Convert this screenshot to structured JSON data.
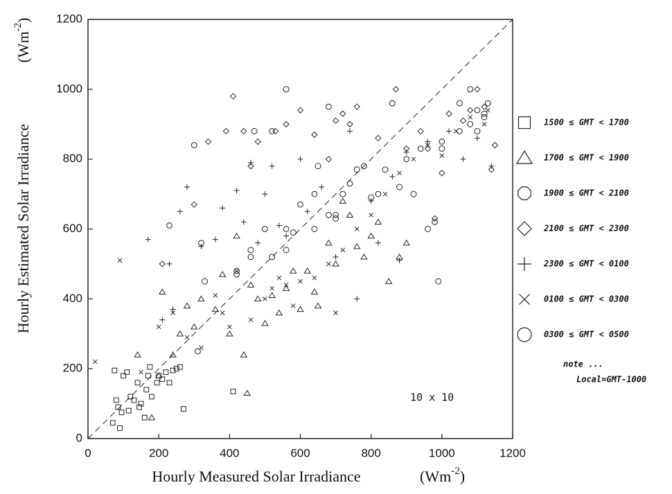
{
  "chart_data": {
    "type": "scatter",
    "x_label": "Hourly Measured Solar Irradiance",
    "x_unit": [
      "(Wm",
      "-2",
      ")"
    ],
    "y_label": "Hourly Estimated Solar Irradiance",
    "y_unit": [
      "(Wm",
      "-2",
      ")"
    ],
    "annotation": "10 x 10",
    "note": [
      "note ...",
      "Local=GMT-1000"
    ],
    "xlim": [
      0,
      1200
    ],
    "ylim": [
      0,
      1200
    ],
    "xticks": [
      0,
      200,
      400,
      600,
      800,
      1000,
      1200
    ],
    "yticks": [
      0,
      200,
      400,
      600,
      800,
      1000,
      1200
    ],
    "reference_line": true,
    "legend": "right",
    "series": [
      {
        "name": "1500 ≤ GMT < 1700",
        "marker": "square",
        "color": "#222",
        "x": [
          70,
          75,
          80,
          85,
          90,
          95,
          100,
          110,
          115,
          120,
          130,
          140,
          145,
          150,
          160,
          165,
          170,
          175,
          180,
          195,
          200,
          210,
          220,
          230,
          240,
          250,
          260,
          270,
          410
        ],
        "y": [
          45,
          195,
          110,
          90,
          30,
          75,
          180,
          190,
          80,
          120,
          110,
          160,
          90,
          100,
          60,
          140,
          180,
          205,
          120,
          160,
          180,
          170,
          190,
          160,
          195,
          200,
          205,
          85,
          135
        ]
      },
      {
        "name": "1700 ≤ GMT < 1900",
        "marker": "triangle",
        "color": "#222",
        "x": [
          140,
          180,
          200,
          210,
          240,
          260,
          280,
          300,
          320,
          360,
          380,
          400,
          420,
          440,
          450,
          460,
          480,
          500,
          520,
          540,
          560,
          580,
          600,
          620,
          640,
          650,
          680,
          700,
          720,
          740,
          760,
          780,
          800,
          820,
          850,
          880,
          900
        ],
        "y": [
          240,
          60,
          180,
          420,
          240,
          300,
          380,
          320,
          400,
          370,
          470,
          300,
          580,
          240,
          130,
          440,
          400,
          330,
          410,
          360,
          430,
          480,
          370,
          480,
          420,
          380,
          560,
          500,
          680,
          640,
          550,
          520,
          580,
          620,
          450,
          520,
          560
        ]
      },
      {
        "name": "1900 ≤ GMT < 2100",
        "marker": "octagon",
        "color": "#222",
        "x": [
          230,
          300,
          320,
          420,
          460,
          500,
          520,
          560,
          600,
          640,
          680,
          700,
          740,
          780,
          820,
          860,
          900,
          940,
          980,
          1000,
          1050,
          1080,
          1100,
          1120,
          1130
        ],
        "y": [
          610,
          840,
          560,
          480,
          520,
          600,
          880,
          600,
          670,
          700,
          950,
          640,
          730,
          780,
          700,
          960,
          800,
          830,
          620,
          850,
          880,
          900,
          940,
          920,
          960
        ]
      },
      {
        "name": "2100 ≤ GMT < 2300",
        "marker": "diamond",
        "color": "#222",
        "x": [
          210,
          300,
          340,
          390,
          410,
          440,
          460,
          480,
          530,
          560,
          600,
          640,
          700,
          720,
          740,
          760,
          820,
          870,
          900,
          940,
          960,
          1000,
          1020,
          1060,
          1080,
          1100,
          1120,
          1150,
          1140,
          980,
          680
        ],
        "y": [
          500,
          670,
          850,
          880,
          980,
          880,
          780,
          850,
          880,
          900,
          940,
          870,
          910,
          930,
          900,
          950,
          860,
          1000,
          830,
          880,
          830,
          760,
          930,
          910,
          940,
          1000,
          950,
          840,
          770,
          630,
          800
        ]
      },
      {
        "name": "2300 ≤ GMT < 0100",
        "marker": "plus",
        "color": "#222",
        "x": [
          170,
          210,
          230,
          240,
          260,
          280,
          320,
          360,
          380,
          420,
          440,
          460,
          480,
          500,
          520,
          540,
          560,
          600,
          620,
          660,
          700,
          740,
          760,
          800,
          820,
          860,
          880,
          900,
          960,
          1020,
          1060,
          1100,
          1140
        ],
        "y": [
          570,
          340,
          500,
          370,
          650,
          720,
          550,
          570,
          660,
          710,
          620,
          790,
          560,
          700,
          780,
          610,
          580,
          800,
          650,
          720,
          520,
          880,
          400,
          680,
          560,
          750,
          510,
          820,
          850,
          880,
          800,
          860,
          780
        ]
      },
      {
        "name": "0100 ≤ GMT < 0300",
        "marker": "cross",
        "color": "#222",
        "x": [
          20,
          90,
          150,
          200,
          240,
          280,
          320,
          360,
          380,
          400,
          420,
          460,
          500,
          520,
          540,
          560,
          580,
          600,
          640,
          680,
          700,
          720,
          760,
          800,
          840,
          880,
          920,
          960,
          1000,
          1040,
          1080,
          1120,
          1130
        ],
        "y": [
          220,
          510,
          190,
          320,
          360,
          290,
          260,
          410,
          360,
          320,
          480,
          340,
          400,
          430,
          460,
          440,
          380,
          450,
          460,
          500,
          360,
          540,
          600,
          640,
          700,
          760,
          800,
          840,
          810,
          880,
          920,
          900,
          940
        ]
      },
      {
        "name": "0300 ≤ GMT < 0500",
        "marker": "circle",
        "color": "#222",
        "x": [
          310,
          330,
          420,
          460,
          520,
          560,
          580,
          640,
          680,
          700,
          720,
          760,
          800,
          840,
          880,
          920,
          960,
          990,
          1000,
          1050,
          1080,
          1100,
          1120,
          470,
          560,
          650
        ],
        "y": [
          250,
          450,
          470,
          540,
          520,
          540,
          590,
          600,
          640,
          630,
          700,
          770,
          690,
          770,
          720,
          700,
          600,
          450,
          830,
          960,
          1000,
          880,
          930,
          880,
          1000,
          780
        ]
      }
    ]
  }
}
